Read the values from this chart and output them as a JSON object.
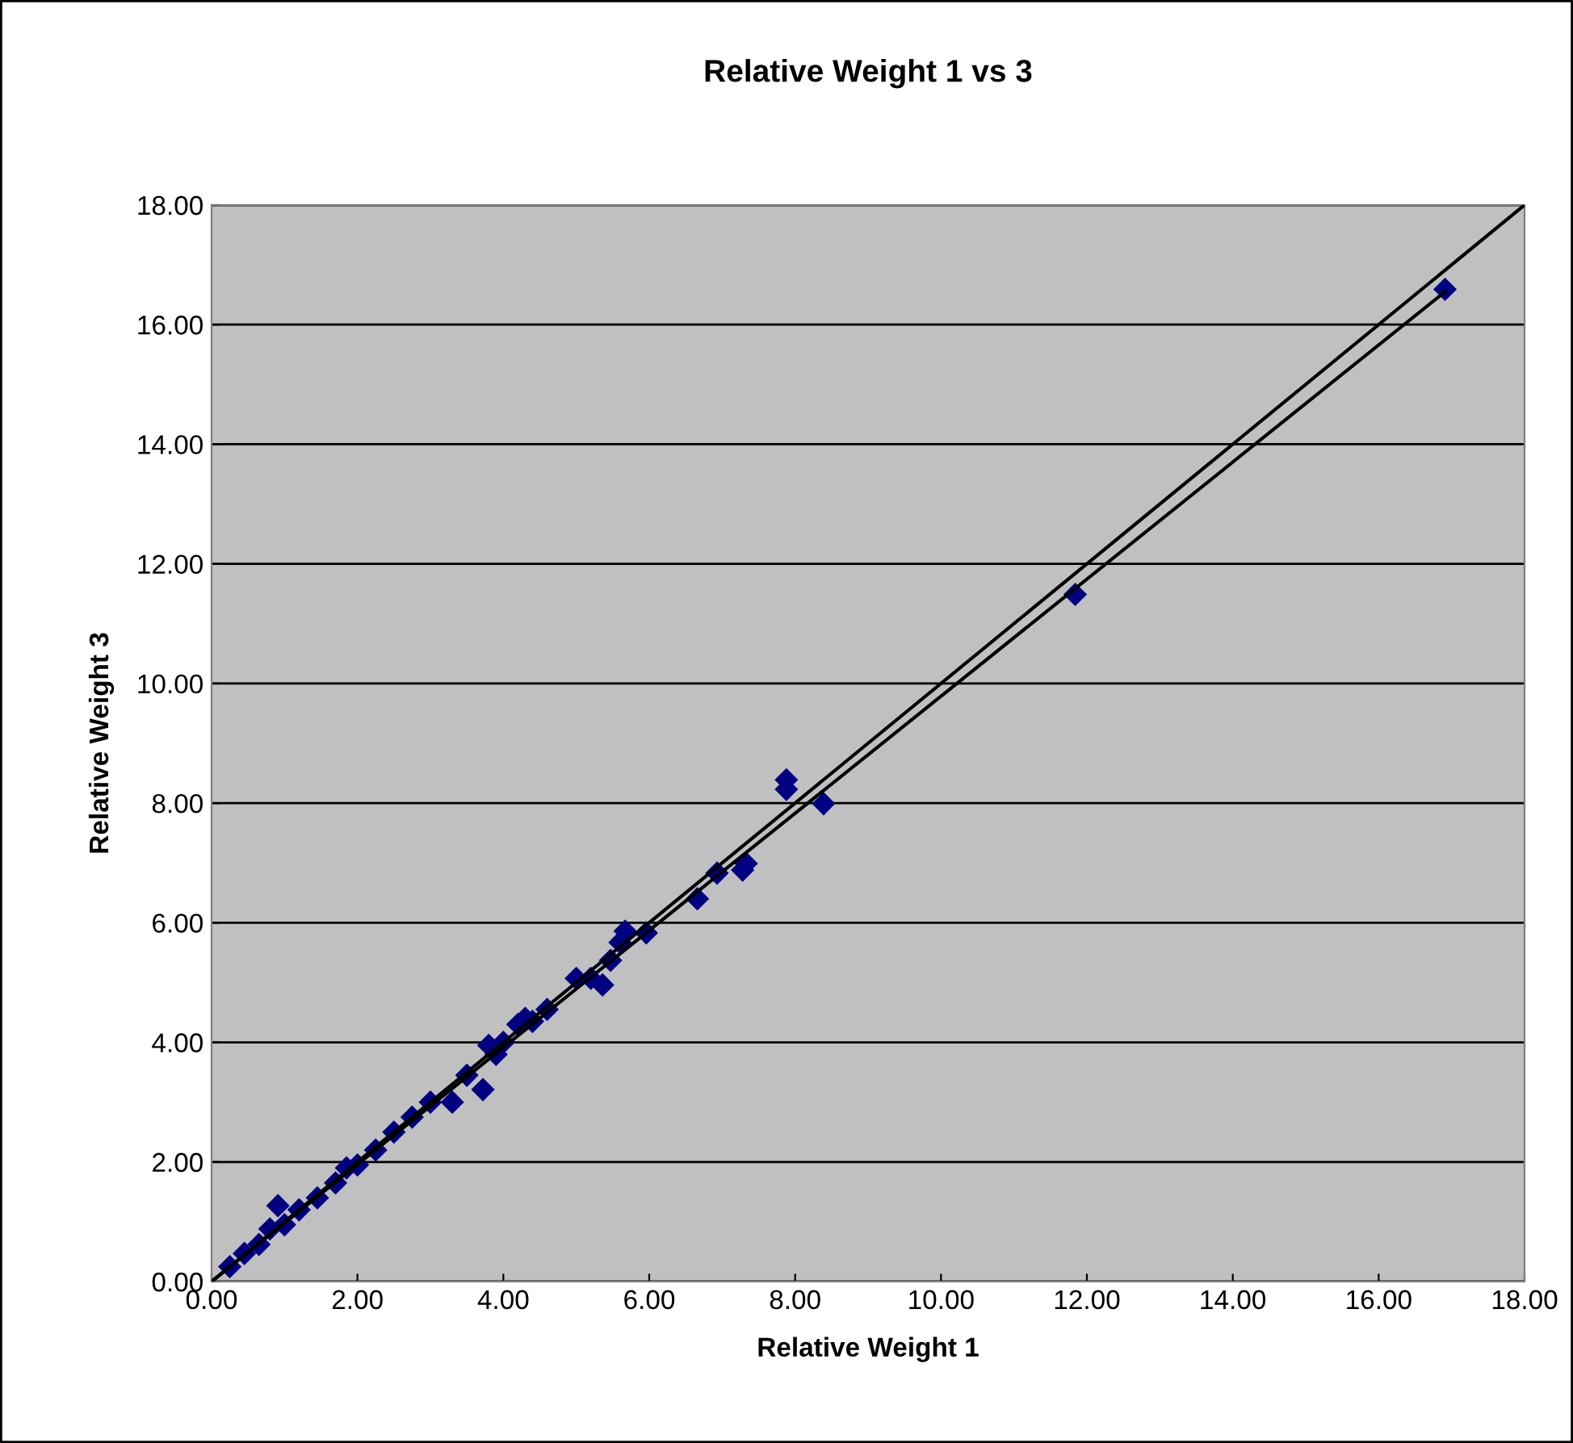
{
  "chart_data": {
    "type": "scatter",
    "title": "Relative Weight 1 vs 3",
    "xlabel": "Relative Weight 1",
    "ylabel": "Relative Weight 3",
    "xlim": [
      0,
      18
    ],
    "ylim": [
      0,
      18
    ],
    "xticks": [
      {
        "value": 0,
        "label": "0.00"
      },
      {
        "value": 2,
        "label": "2.00"
      },
      {
        "value": 4,
        "label": "4.00"
      },
      {
        "value": 6,
        "label": "6.00"
      },
      {
        "value": 8,
        "label": "8.00"
      },
      {
        "value": 10,
        "label": "10.00"
      },
      {
        "value": 12,
        "label": "12.00"
      },
      {
        "value": 14,
        "label": "14.00"
      },
      {
        "value": 16,
        "label": "16.00"
      },
      {
        "value": 18,
        "label": "18.00"
      }
    ],
    "yticks": [
      {
        "value": 0,
        "label": "0.00"
      },
      {
        "value": 2,
        "label": "2.00"
      },
      {
        "value": 4,
        "label": "4.00"
      },
      {
        "value": 6,
        "label": "6.00"
      },
      {
        "value": 8,
        "label": "8.00"
      },
      {
        "value": 10,
        "label": "10.00"
      },
      {
        "value": 12,
        "label": "12.00"
      },
      {
        "value": 14,
        "label": "14.00"
      },
      {
        "value": 16,
        "label": "16.00"
      },
      {
        "value": 18,
        "label": "18.00"
      }
    ],
    "grid": "y",
    "series": [
      {
        "marker": "diamond",
        "color": "#000080",
        "x": [
          0.25,
          0.45,
          0.65,
          0.8,
          0.91,
          1.0,
          1.2,
          1.45,
          1.7,
          1.85,
          2.0,
          2.25,
          2.5,
          2.75,
          3.0,
          3.3,
          3.5,
          3.72,
          3.8,
          3.9,
          4.0,
          4.2,
          4.3,
          4.4,
          4.6,
          5.0,
          5.2,
          5.36,
          5.47,
          5.6,
          5.67,
          5.96,
          6.66,
          6.93,
          7.28,
          7.33,
          7.88,
          7.88,
          8.39,
          11.84,
          16.91
        ],
        "values": [
          0.25,
          0.47,
          0.62,
          0.88,
          1.27,
          0.95,
          1.2,
          1.4,
          1.65,
          1.9,
          1.95,
          2.2,
          2.5,
          2.75,
          3.0,
          3.0,
          3.45,
          3.21,
          3.95,
          3.8,
          4.0,
          4.3,
          4.4,
          4.35,
          4.55,
          5.07,
          5.07,
          4.96,
          5.37,
          5.67,
          5.86,
          5.83,
          6.4,
          6.83,
          6.88,
          6.99,
          8.39,
          8.23,
          7.99,
          11.49,
          16.59
        ]
      },
      {
        "type": "line",
        "marker": "none",
        "color": "#000000",
        "x": [
          0,
          18
        ],
        "values": [
          0,
          18
        ]
      },
      {
        "type": "line",
        "marker": "none",
        "color": "#000000",
        "x": [
          0,
          16.91
        ],
        "values": [
          0,
          16.55
        ]
      }
    ]
  }
}
